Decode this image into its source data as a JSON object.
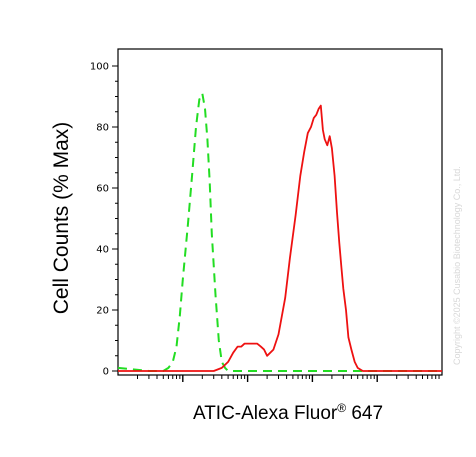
{
  "chart_data": {
    "type": "line",
    "title": "",
    "xlabel": "ATIC-Alexa Fluor",
    "xlabel_super": "®",
    "xlabel_tail": " 647",
    "ylabel": "Cell Counts (% Max)",
    "xscale": "log",
    "xlim": [
      1,
      100000
    ],
    "ylim": [
      0,
      100
    ],
    "yticks": [
      0,
      20,
      40,
      60,
      80,
      100
    ],
    "ytick_labels": [
      "0",
      "20",
      "40",
      "60",
      "80",
      "100"
    ],
    "xtick_labels": [],
    "grid": false,
    "legend": "none",
    "series": [
      {
        "color": "#22dd22",
        "dash": true,
        "x": [
          1,
          3,
          5,
          6,
          7,
          8,
          9,
          10,
          12,
          14,
          16,
          18,
          20,
          22,
          24,
          26,
          28,
          32,
          36,
          40,
          45,
          50,
          60,
          80,
          100,
          200,
          1000,
          100000
        ],
        "y": [
          1,
          0,
          0,
          1,
          3,
          8,
          18,
          30,
          48,
          65,
          80,
          89,
          91,
          86,
          76,
          62,
          45,
          25,
          10,
          3,
          1,
          0,
          0,
          0,
          0,
          0,
          0,
          0
        ]
      },
      {
        "color": "#ee1111",
        "dash": false,
        "x": [
          1,
          10,
          20,
          30,
          40,
          50,
          60,
          70,
          80,
          90,
          100,
          120,
          140,
          160,
          180,
          200,
          250,
          300,
          380,
          450,
          550,
          650,
          750,
          850,
          950,
          1050,
          1150,
          1250,
          1350,
          1450,
          1550,
          1700,
          1850,
          2000,
          2200,
          2400,
          2600,
          2800,
          3000,
          3300,
          3600,
          4000,
          4500,
          5000,
          6000,
          7000,
          8000,
          10000,
          12000,
          100000
        ],
        "y": [
          0,
          0,
          0,
          0,
          1,
          3,
          6,
          8,
          8,
          9,
          9,
          9,
          9,
          8,
          7,
          5,
          7,
          12,
          24,
          37,
          51,
          64,
          72,
          78,
          80,
          83,
          84,
          86,
          87,
          79,
          76,
          74,
          77,
          73,
          64,
          52,
          42,
          34,
          27,
          20,
          11,
          7,
          3,
          1,
          0,
          0,
          0,
          0,
          0,
          0
        ]
      }
    ]
  },
  "watermark": "Copyright ©2025 Cusabio Biotechnology Co., Ltd."
}
